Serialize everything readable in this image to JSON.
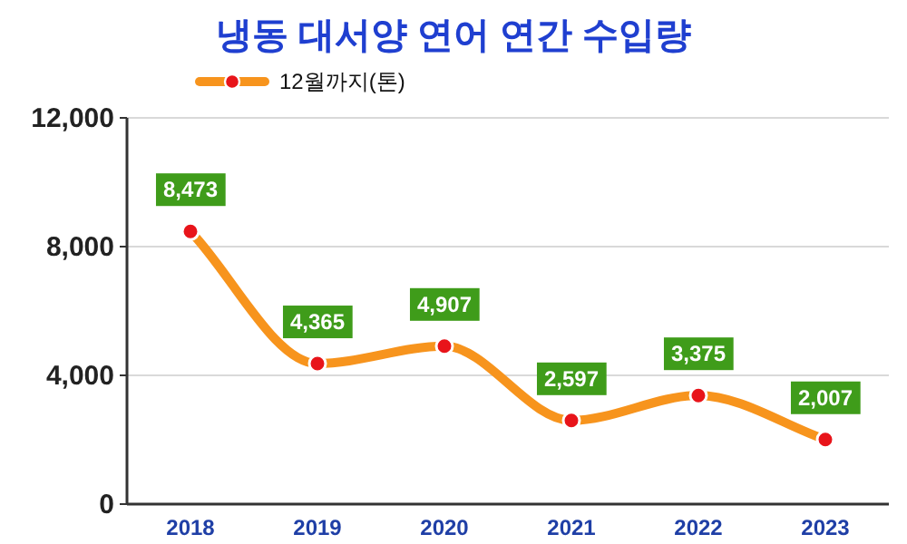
{
  "chart_data": {
    "type": "line",
    "title": "냉동 대서양 연어 연간 수입량",
    "categories": [
      "2018",
      "2019",
      "2020",
      "2021",
      "2022",
      "2023"
    ],
    "series": [
      {
        "name": "12월까지(톤)",
        "color": "#f7941d",
        "values": [
          8473,
          4365,
          4907,
          2597,
          3375,
          2007
        ],
        "value_labels": [
          "8,473",
          "4,365",
          "4,907",
          "2,597",
          "3,375",
          "2,007"
        ]
      }
    ],
    "ylim": [
      0,
      12000
    ],
    "yticks": [
      0,
      {
        "value": 4000,
        "label": "4,000"
      },
      {
        "value": 8000,
        "label": "8,000"
      },
      {
        "value": 12000,
        "label": "12,000"
      }
    ],
    "grid": "y",
    "legend": "top left",
    "marker": "circle",
    "line_style": "solid"
  }
}
